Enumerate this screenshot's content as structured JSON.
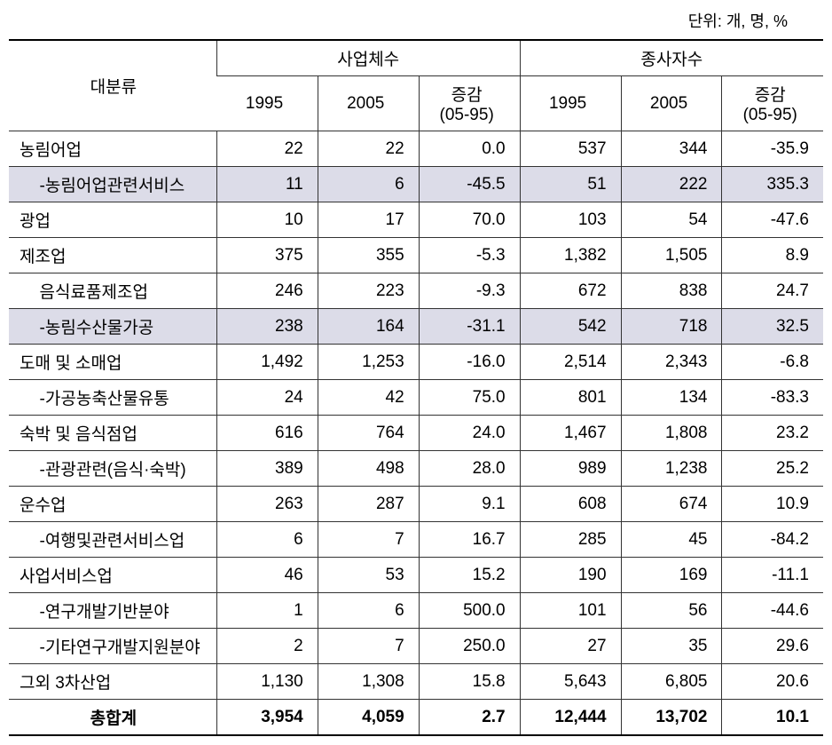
{
  "unit_text": "단위: 개, 명, %",
  "headers": {
    "category": "대분류",
    "group1": "사업체수",
    "group2": "종사자수",
    "y1995": "1995",
    "y2005": "2005",
    "change": "증감\n(05-95)"
  },
  "rows": [
    {
      "label": "농림어업",
      "b1995": "22",
      "b2005": "22",
      "bchg": "0.0",
      "e1995": "537",
      "e2005": "344",
      "echg": "-35.9",
      "indent": 0,
      "highlight": false
    },
    {
      "label": "-농림어업관련서비스",
      "b1995": "11",
      "b2005": "6",
      "bchg": "-45.5",
      "e1995": "51",
      "e2005": "222",
      "echg": "335.3",
      "indent": 1,
      "highlight": true
    },
    {
      "label": "광업",
      "b1995": "10",
      "b2005": "17",
      "bchg": "70.0",
      "e1995": "103",
      "e2005": "54",
      "echg": "-47.6",
      "indent": 0,
      "highlight": false
    },
    {
      "label": "제조업",
      "b1995": "375",
      "b2005": "355",
      "bchg": "-5.3",
      "e1995": "1,382",
      "e2005": "1,505",
      "echg": "8.9",
      "indent": 0,
      "highlight": false
    },
    {
      "label": "음식료품제조업",
      "b1995": "246",
      "b2005": "223",
      "bchg": "-9.3",
      "e1995": "672",
      "e2005": "838",
      "echg": "24.7",
      "indent": 1,
      "highlight": false
    },
    {
      "label": "-농림수산물가공",
      "b1995": "238",
      "b2005": "164",
      "bchg": "-31.1",
      "e1995": "542",
      "e2005": "718",
      "echg": "32.5",
      "indent": 1,
      "highlight": true
    },
    {
      "label": "도매 및 소매업",
      "b1995": "1,492",
      "b2005": "1,253",
      "bchg": "-16.0",
      "e1995": "2,514",
      "e2005": "2,343",
      "echg": "-6.8",
      "indent": 0,
      "highlight": false
    },
    {
      "label": "-가공농축산물유통",
      "b1995": "24",
      "b2005": "42",
      "bchg": "75.0",
      "e1995": "801",
      "e2005": "134",
      "echg": "-83.3",
      "indent": 1,
      "highlight": false
    },
    {
      "label": "숙박 및 음식점업",
      "b1995": "616",
      "b2005": "764",
      "bchg": "24.0",
      "e1995": "1,467",
      "e2005": "1,808",
      "echg": "23.2",
      "indent": 0,
      "highlight": false
    },
    {
      "label": "-관광관련(음식·숙박)",
      "b1995": "389",
      "b2005": "498",
      "bchg": "28.0",
      "e1995": "989",
      "e2005": "1,238",
      "echg": "25.2",
      "indent": 1,
      "highlight": false
    },
    {
      "label": "운수업",
      "b1995": "263",
      "b2005": "287",
      "bchg": "9.1",
      "e1995": "608",
      "e2005": "674",
      "echg": "10.9",
      "indent": 0,
      "highlight": false
    },
    {
      "label": "-여행및관련서비스업",
      "b1995": "6",
      "b2005": "7",
      "bchg": "16.7",
      "e1995": "285",
      "e2005": "45",
      "echg": "-84.2",
      "indent": 1,
      "highlight": false
    },
    {
      "label": "사업서비스업",
      "b1995": "46",
      "b2005": "53",
      "bchg": "15.2",
      "e1995": "190",
      "e2005": "169",
      "echg": "-11.1",
      "indent": 0,
      "highlight": false
    },
    {
      "label": "-연구개발기반분야",
      "b1995": "1",
      "b2005": "6",
      "bchg": "500.0",
      "e1995": "101",
      "e2005": "56",
      "echg": "-44.6",
      "indent": 1,
      "highlight": false
    },
    {
      "label": "-기타연구개발지원분야",
      "b1995": "2",
      "b2005": "7",
      "bchg": "250.0",
      "e1995": "27",
      "e2005": "35",
      "echg": "29.6",
      "indent": 1,
      "highlight": false
    },
    {
      "label": "그외 3차산업",
      "b1995": "1,130",
      "b2005": "1,308",
      "bchg": "15.8",
      "e1995": "5,643",
      "e2005": "6,805",
      "echg": "20.6",
      "indent": 0,
      "highlight": false
    }
  ],
  "total": {
    "label": "총합계",
    "b1995": "3,954",
    "b2005": "4,059",
    "bchg": "2.7",
    "e1995": "12,444",
    "e2005": "13,702",
    "echg": "10.1"
  }
}
